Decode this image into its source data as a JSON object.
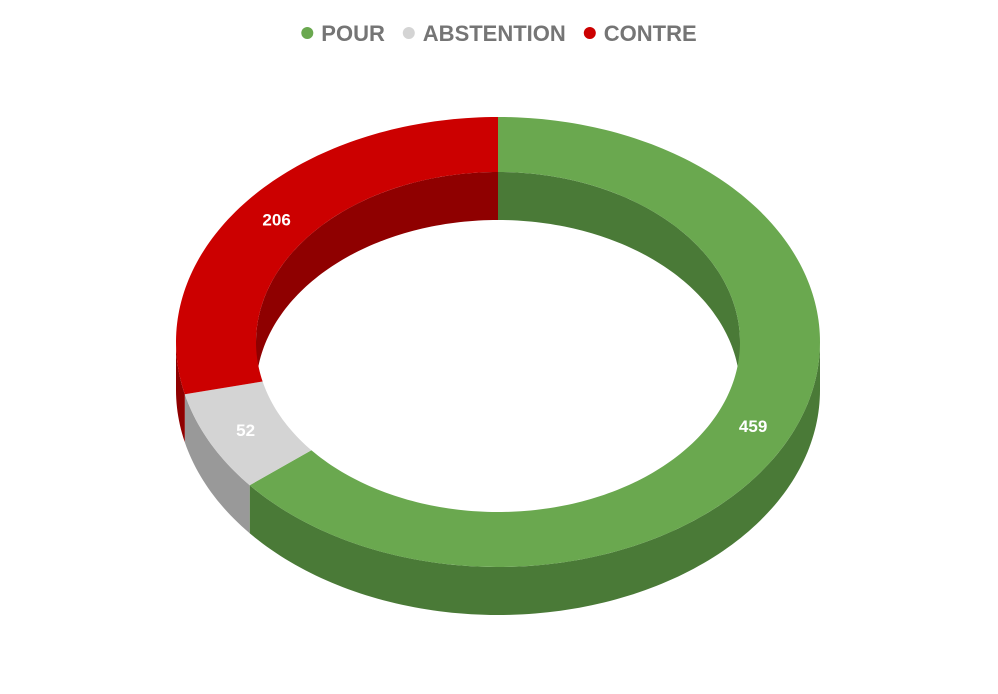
{
  "chart_data": {
    "type": "pie",
    "variant": "3d-donut",
    "categories": [
      "POUR",
      "ABSTENTION",
      "CONTRE"
    ],
    "values": [
      459,
      52,
      206
    ],
    "colors": {
      "POUR": "#6aa84f",
      "ABSTENTION": "#d4d4d4",
      "CONTRE": "#cc0000"
    },
    "side_colors": {
      "POUR": "#4a7a37",
      "ABSTENTION": "#999999",
      "CONTRE": "#8f0000"
    },
    "data_labels": [
      "459",
      "52",
      "206"
    ],
    "legend_position": "top-center",
    "start_angle": "12 o'clock",
    "direction": "clockwise"
  }
}
